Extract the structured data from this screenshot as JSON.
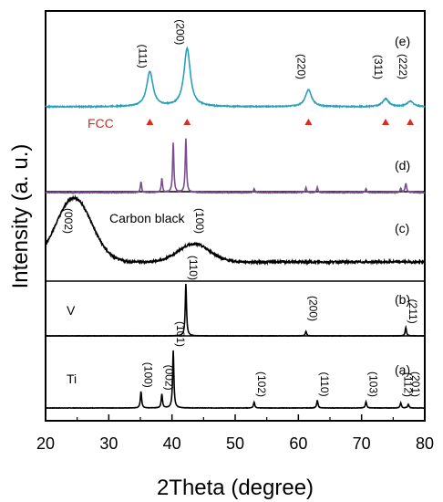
{
  "chart_data": {
    "type": "line",
    "xlabel": "2Theta (degree)",
    "ylabel": "Intensity (a. u.)",
    "xlim": [
      20,
      80
    ],
    "xticks": [
      20,
      30,
      40,
      50,
      60,
      70,
      80
    ],
    "grid": false,
    "series": [
      {
        "tag": "(a)",
        "label": "Ti",
        "color": "#000000",
        "baseline": 0.0,
        "noise": 0.005,
        "peaks": [
          {
            "x": 35.1,
            "h": 0.26,
            "w": 0.12,
            "label": "(100)"
          },
          {
            "x": 38.4,
            "h": 0.22,
            "w": 0.12,
            "label": "(002)"
          },
          {
            "x": 40.2,
            "h": 0.9,
            "w": 0.12,
            "label": "(101)"
          },
          {
            "x": 53.0,
            "h": 0.09,
            "w": 0.12,
            "label": "(102)"
          },
          {
            "x": 63.0,
            "h": 0.12,
            "w": 0.12,
            "label": "(110)"
          },
          {
            "x": 70.7,
            "h": 0.1,
            "w": 0.12,
            "label": "(103)"
          },
          {
            "x": 76.2,
            "h": 0.08,
            "w": 0.12,
            "label": "(112)"
          },
          {
            "x": 77.4,
            "h": 0.06,
            "w": 0.12,
            "label": "(201)"
          }
        ]
      },
      {
        "tag": "(b)",
        "label": "V",
        "color": "#000000",
        "baseline": 0.0,
        "noise": 0.005,
        "peaks": [
          {
            "x": 42.2,
            "h": 0.92,
            "w": 0.12,
            "label": "(110)"
          },
          {
            "x": 61.2,
            "h": 0.08,
            "w": 0.12,
            "label": "(200)"
          },
          {
            "x": 77.0,
            "h": 0.15,
            "w": 0.12,
            "label": "(211)"
          }
        ]
      },
      {
        "tag": "(c)",
        "label": "Carbon black",
        "color": "#000000",
        "baseline": 0.0,
        "noise": 0.025,
        "humps": [
          {
            "x": 24.5,
            "h": 0.78,
            "w": 2.8
          },
          {
            "x": 43.5,
            "h": 0.22,
            "w": 2.5
          }
        ],
        "peaks": [
          {
            "x": 24.5,
            "h": 0,
            "w": 0,
            "label": "(002)"
          },
          {
            "x": 43.5,
            "h": 0,
            "w": 0,
            "label": "(100)"
          }
        ]
      },
      {
        "tag": "(d)",
        "label": "",
        "color": "#7b4d90",
        "baseline": 0.0,
        "noise": 0.01,
        "peaks": [
          {
            "x": 35.1,
            "h": 0.17,
            "w": 0.12
          },
          {
            "x": 38.4,
            "h": 0.22,
            "w": 0.12
          },
          {
            "x": 40.2,
            "h": 0.78,
            "w": 0.12
          },
          {
            "x": 42.2,
            "h": 0.85,
            "w": 0.12
          },
          {
            "x": 53.0,
            "h": 0.06,
            "w": 0.12
          },
          {
            "x": 61.2,
            "h": 0.08,
            "w": 0.12
          },
          {
            "x": 63.0,
            "h": 0.08,
            "w": 0.12
          },
          {
            "x": 70.7,
            "h": 0.06,
            "w": 0.12
          },
          {
            "x": 76.2,
            "h": 0.07,
            "w": 0.12
          },
          {
            "x": 77.0,
            "h": 0.14,
            "w": 0.15
          }
        ]
      },
      {
        "tag": "(e)",
        "label": "",
        "color": "#2aa0b8",
        "baseline": 0.0,
        "noise": 0.012,
        "peaks": [
          {
            "x": 36.5,
            "h": 0.45,
            "w": 0.6,
            "label": "(111)"
          },
          {
            "x": 42.4,
            "h": 0.75,
            "w": 0.6,
            "label": "(200)"
          },
          {
            "x": 61.6,
            "h": 0.22,
            "w": 0.6,
            "label": "(220)"
          },
          {
            "x": 73.8,
            "h": 0.1,
            "w": 0.6,
            "label": "(311)"
          },
          {
            "x": 77.7,
            "h": 0.07,
            "w": 0.6,
            "label": "(222)"
          }
        ]
      }
    ],
    "phase_markers": {
      "label": "FCC",
      "color": "#d92b1e",
      "x": [
        36.5,
        42.4,
        61.6,
        73.8,
        77.7
      ]
    }
  }
}
